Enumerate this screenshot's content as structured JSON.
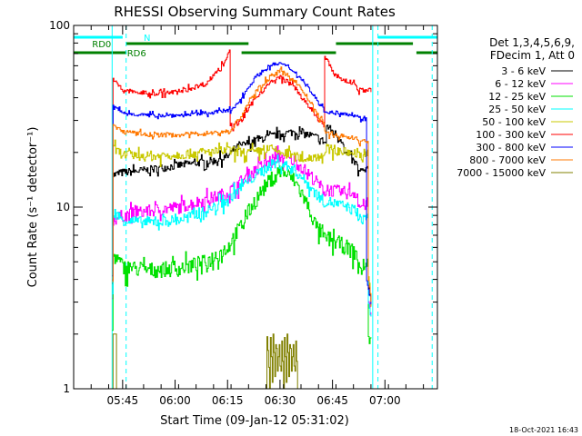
{
  "chart_data": {
    "type": "line",
    "title": "RHESSI Observing Summary Count Rates",
    "xlabel": "Start Time (09-Jan-12 05:31:02)",
    "ylabel": "Count Rate (s⁻¹ detector⁻¹)",
    "yscale": "log",
    "ylim": [
      1,
      100
    ],
    "xlim_minutes": [
      0,
      104
    ],
    "x_ticks": [
      {
        "t": 14,
        "label": "05:45"
      },
      {
        "t": 29,
        "label": "06:00"
      },
      {
        "t": 44,
        "label": "06:15"
      },
      {
        "t": 59,
        "label": "06:30"
      },
      {
        "t": 74,
        "label": "06:45"
      },
      {
        "t": 89,
        "label": "07:00"
      }
    ],
    "y_ticks": [
      {
        "v": 1,
        "label": "1"
      },
      {
        "v": 10,
        "label": "10"
      },
      {
        "v": 100,
        "label": "100"
      }
    ],
    "legend": {
      "position": "top-right",
      "header1": "Det 1,3,4,5,6,9,",
      "header2": "FDecim 1, Att 0"
    },
    "series": [
      {
        "name": "3 - 6 keV",
        "color": "#000000",
        "noise": 0.05,
        "x": [
          11,
          11.2,
          14,
          21,
          30,
          40,
          44,
          46,
          51,
          58,
          63,
          67,
          70,
          72,
          72.2,
          77,
          77.2,
          81,
          81.2,
          84,
          84.2,
          85,
          85.2,
          99
        ],
        "y": [
          4,
          15,
          15.5,
          16,
          17,
          18,
          19,
          21,
          23,
          25,
          26,
          25,
          24,
          22.5,
          28,
          23,
          20,
          17,
          15.5,
          16,
          4,
          3,
          null,
          null
        ]
      },
      {
        "name": "6 - 12 keV",
        "color": "#ff00ff",
        "noise": 0.08,
        "x": [
          11,
          11.2,
          14,
          21,
          30,
          38,
          44,
          48,
          52,
          56,
          59,
          63,
          66,
          69,
          72,
          72.2,
          78,
          81,
          81.2,
          84,
          84.2,
          85,
          85.2,
          99
        ],
        "y": [
          3,
          8.5,
          9,
          9.5,
          10,
          11,
          12,
          14,
          16,
          18,
          19,
          18,
          16,
          14,
          12,
          12.5,
          12,
          12,
          10,
          10.5,
          3,
          2.5,
          null,
          null
        ]
      },
      {
        "name": "12 - 25 keV",
        "color": "#00e000",
        "noise": 0.1,
        "x": [
          11,
          11.2,
          14,
          21,
          30,
          38,
          44,
          48,
          52,
          56,
          59,
          63,
          66,
          69,
          72,
          72.2,
          78,
          81,
          81.2,
          84,
          84.2,
          85,
          85.2,
          99
        ],
        "y": [
          2,
          5.5,
          4.7,
          4.5,
          4.6,
          5,
          6,
          8,
          11,
          14,
          16,
          14,
          11,
          8,
          6.5,
          6.8,
          6,
          5.5,
          4.5,
          4.8,
          2,
          1.8,
          null,
          null
        ]
      },
      {
        "name": "25 - 50 keV",
        "color": "#00ffff",
        "noise": 0.07,
        "x": [
          11,
          11.2,
          14,
          21,
          30,
          38,
          44,
          48,
          52,
          56,
          59,
          63,
          66,
          69,
          72,
          72.2,
          78,
          81,
          81.2,
          84,
          84.2,
          85,
          85.2,
          99
        ],
        "y": [
          3,
          9.5,
          8.5,
          8.2,
          8.5,
          9.5,
          11,
          13,
          15,
          17,
          17.5,
          16,
          14,
          12,
          10.5,
          10.8,
          10,
          9.5,
          8.5,
          8.8,
          3,
          2.5,
          null,
          null
        ]
      },
      {
        "name": "50 - 100 keV",
        "color": "#c8c800",
        "noise": 0.06,
        "x": [
          11,
          11.2,
          14,
          21,
          30,
          38,
          44,
          48,
          52,
          56,
          59,
          63,
          66,
          69,
          72,
          72.2,
          78,
          81,
          81.2,
          84,
          84.2,
          85,
          85.2,
          99
        ],
        "y": [
          4,
          21,
          19.5,
          19,
          19.5,
          20,
          20.5,
          20,
          20,
          21,
          20,
          19,
          18.5,
          19,
          19.5,
          21,
          20,
          20,
          19.5,
          20,
          4,
          3,
          null,
          null
        ]
      },
      {
        "name": "100 - 300 keV",
        "color": "#ff0000",
        "noise": 0.03,
        "x": [
          11,
          11.2,
          14,
          21,
          30,
          38,
          43,
          44.5,
          44.7,
          48,
          52,
          56,
          59,
          63,
          66,
          69,
          71.5,
          71.7,
          74,
          77,
          80,
          81,
          81.2,
          85,
          85.2,
          99
        ],
        "y": [
          4,
          50,
          44,
          42,
          43,
          48,
          62,
          75,
          27,
          30,
          40,
          48,
          52,
          46,
          38,
          32,
          28,
          68,
          55,
          50,
          48,
          47,
          44,
          44,
          null,
          null
        ]
      },
      {
        "name": "300 - 800 keV",
        "color": "#0000ff",
        "noise": 0.025,
        "x": [
          11,
          11.2,
          14,
          21,
          30,
          38,
          44,
          44.5,
          44.7,
          48,
          52,
          56,
          59,
          63,
          66,
          69,
          71.5,
          71.7,
          74,
          77,
          80,
          81,
          81.2,
          83.5,
          83.7,
          85,
          85.2,
          99
        ],
        "y": [
          4,
          36,
          33,
          32,
          32,
          33,
          34,
          35,
          33,
          40,
          52,
          60,
          62,
          56,
          48,
          40,
          34,
          34,
          33,
          33,
          32,
          32,
          31,
          31,
          4,
          3,
          null,
          null
        ]
      },
      {
        "name": "800 - 7000 keV",
        "color": "#ff7800",
        "noise": 0.03,
        "x": [
          11,
          11.2,
          14,
          21,
          30,
          38,
          44,
          44.5,
          44.7,
          48,
          52,
          56,
          59,
          63,
          66,
          69,
          71.5,
          71.7,
          74,
          77,
          80,
          81,
          81.2,
          84,
          84.2,
          85,
          85.2,
          99
        ],
        "y": [
          4,
          28,
          26,
          25,
          25,
          25.5,
          26,
          26,
          26,
          32,
          43,
          52,
          56,
          50,
          42,
          34,
          28,
          26,
          25,
          24.5,
          24,
          24,
          23,
          23,
          4,
          3,
          null,
          null
        ]
      },
      {
        "name": "7000 - 15000 keV",
        "color": "#808000",
        "noise": 0,
        "x": [
          11,
          11.2,
          12,
          12.2,
          55,
          55.2,
          56,
          56.2,
          56.8,
          57,
          57.6,
          57.8,
          58.4,
          58.6,
          59.2,
          59.4,
          60,
          60.2,
          60.8,
          61,
          61.6,
          61.8,
          62.4,
          62.6,
          63.2,
          63.4,
          64,
          64.2,
          99
        ],
        "y": [
          1,
          2,
          2,
          1,
          1,
          2,
          1,
          2,
          1,
          2,
          1,
          2,
          1,
          2,
          1,
          2,
          1,
          2,
          1,
          2,
          1,
          2,
          1,
          2,
          1,
          2,
          1,
          null,
          null
        ]
      }
    ],
    "annotations": {
      "attenuator_bars": [
        {
          "label": "N",
          "color": "#00ffff",
          "level": 0,
          "segments": [
            [
              0,
              14
            ],
            [
              87,
              104
            ]
          ],
          "label_at": 21
        },
        {
          "label": "RD0",
          "color": "#008000",
          "level": 1,
          "segments": [
            [
              15,
              50
            ],
            [
              75,
              97
            ]
          ],
          "label_at": 8
        },
        {
          "label": "RD6",
          "color": "#008000",
          "level": 2,
          "segments": [
            [
              0,
              16
            ],
            [
              48,
              75
            ],
            [
              98,
              104
            ]
          ],
          "label_at": 18
        }
      ],
      "vertical_lines": [
        {
          "t": 11,
          "color": "#00ffff",
          "dashed": false
        },
        {
          "t": 15,
          "color": "#00ffff",
          "dashed": true
        },
        {
          "t": 85.5,
          "color": "#00ffff",
          "dashed": false
        },
        {
          "t": 87,
          "color": "#00ffff",
          "dashed": true
        },
        {
          "t": 102.5,
          "color": "#00ffff",
          "dashed": true
        }
      ]
    }
  },
  "footer": {
    "timestamp": "18-Oct-2021 16:43"
  }
}
